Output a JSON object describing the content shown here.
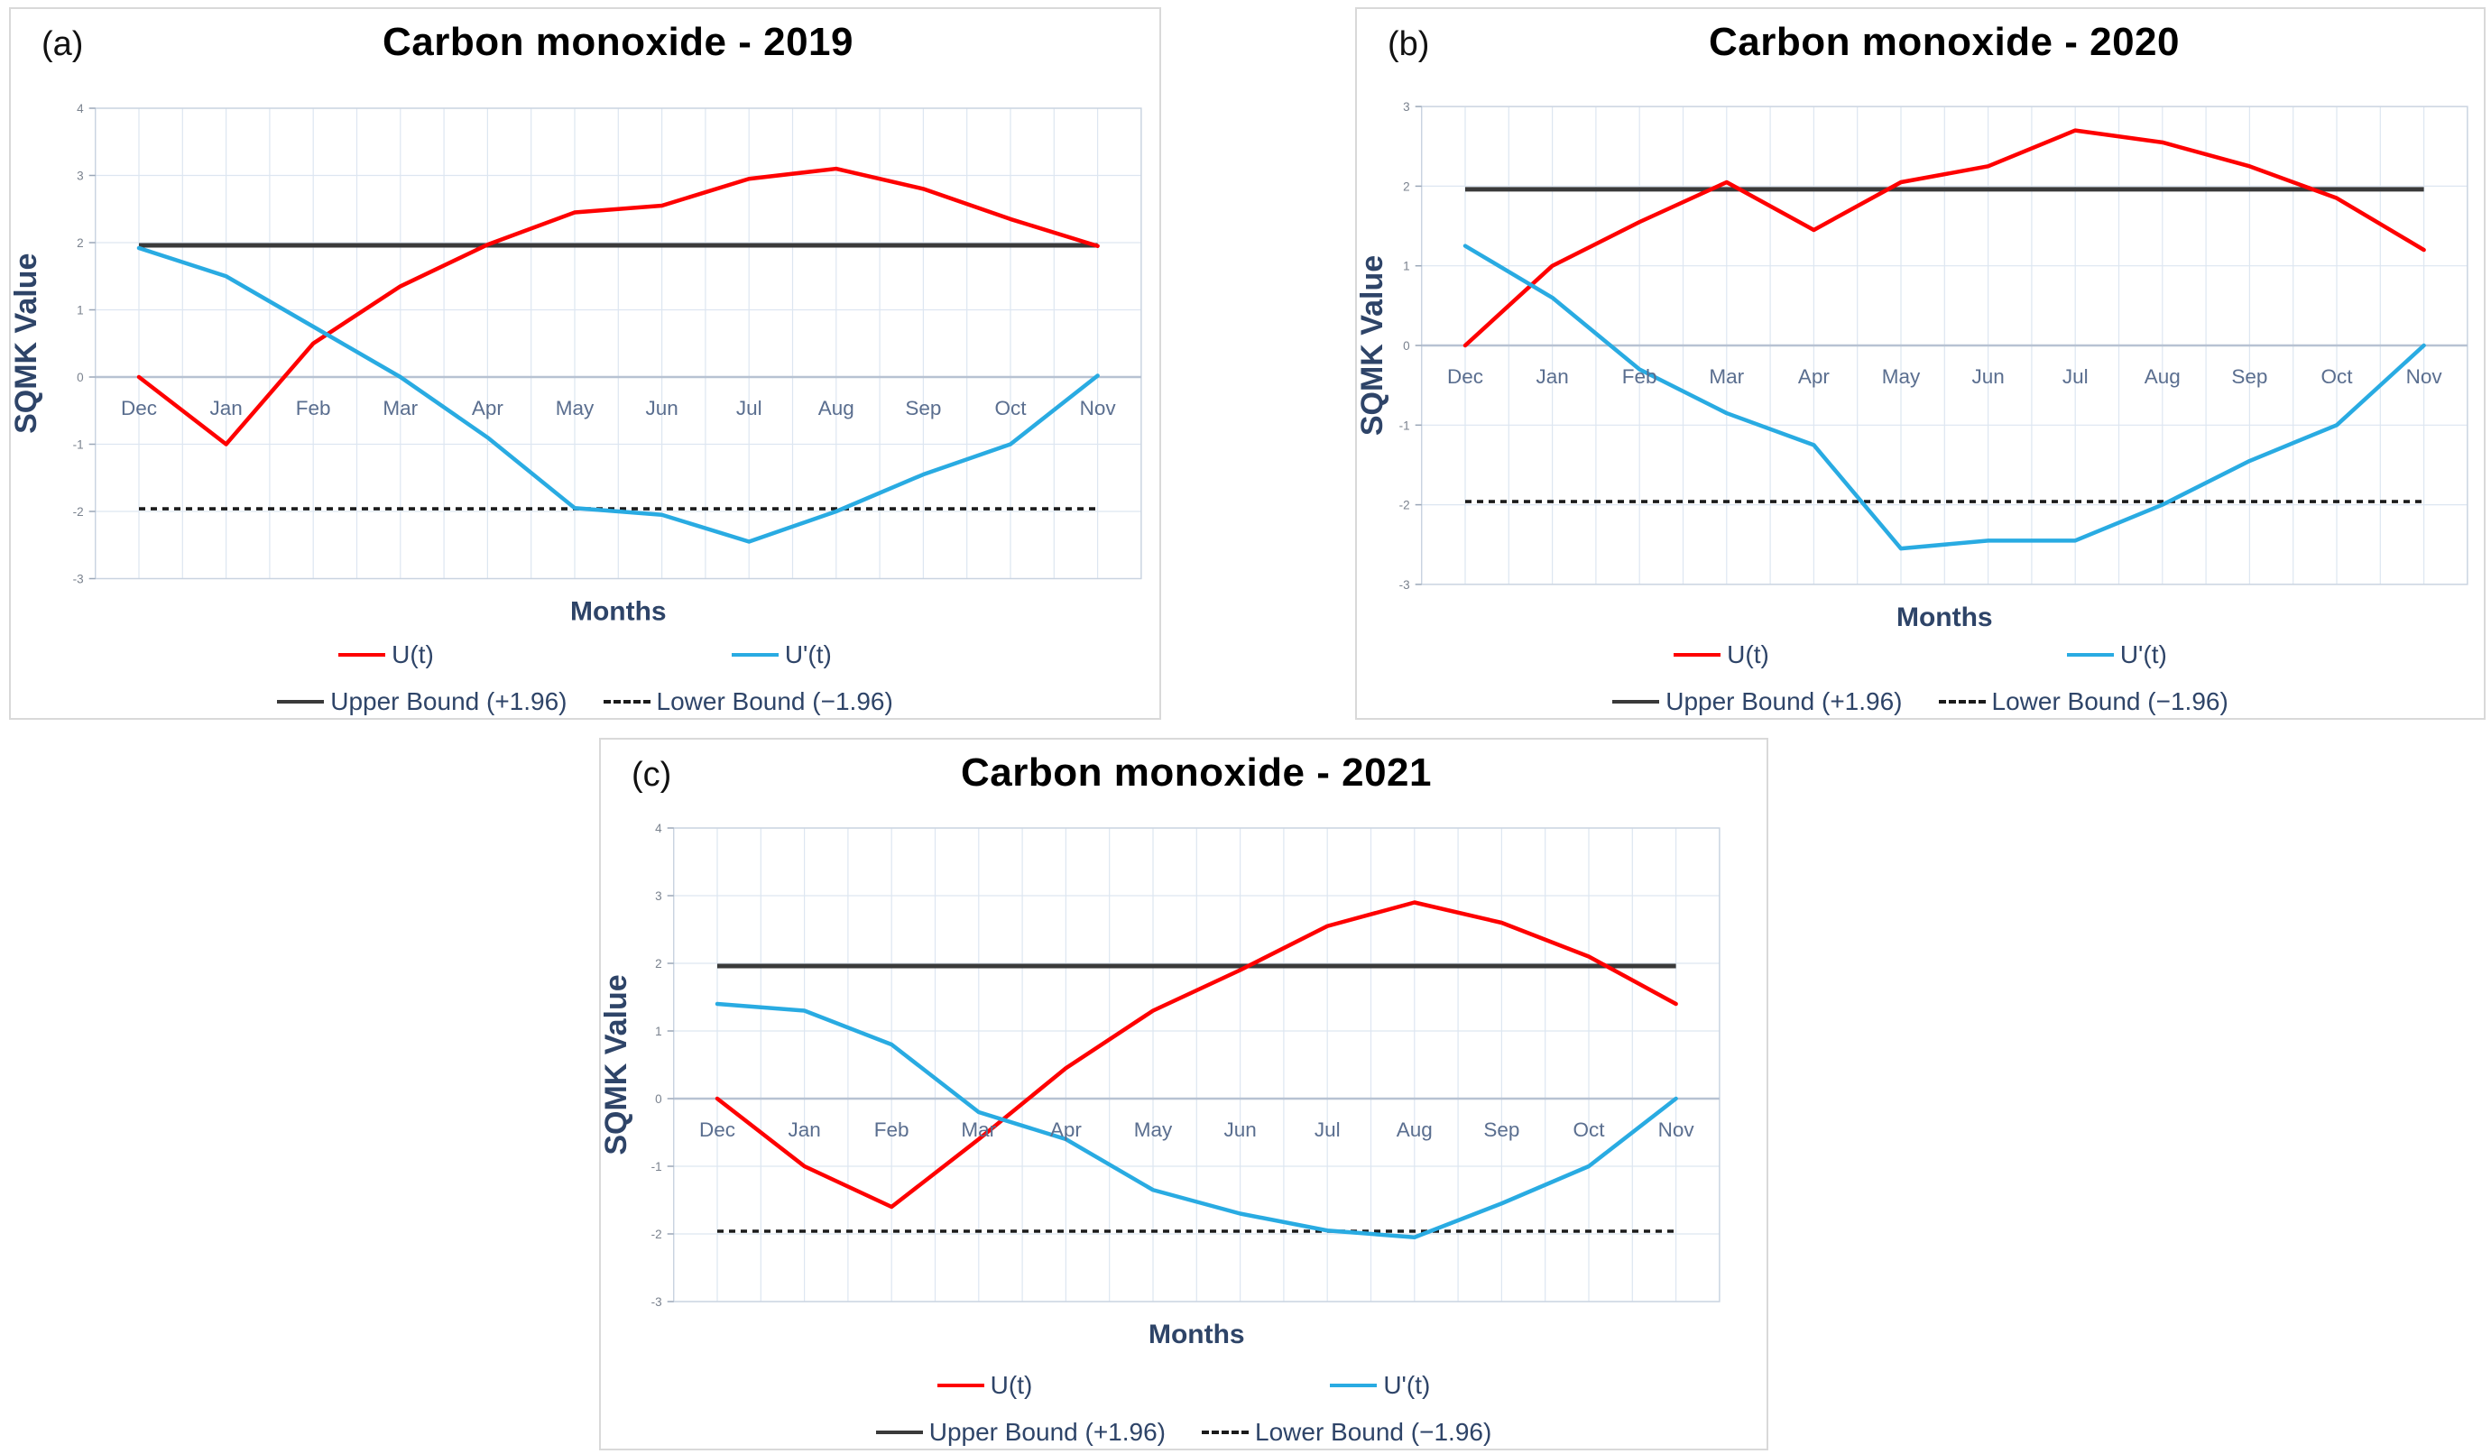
{
  "colors": {
    "u": "#fe0000",
    "u_prime": "#29abe2",
    "upper_bound": "#3a3a3a",
    "lower_bound": "#1b1b1b",
    "grid": "#dde6f1",
    "plot_border": "#c9d3e0",
    "zero_line": "#b7c2d2",
    "tick_mark": "#9aa7b8",
    "tick_label": "#7a828e",
    "month_label": "#5a6e8f",
    "axis_title": "#2e4468",
    "title": "#000000"
  },
  "legend": {
    "u": "U(t)",
    "u_prime": "U'(t)",
    "upper": "Upper Bound (+1.96)",
    "lower": "Lower Bound (−1.96)"
  },
  "axis_titles": {
    "x": "Months",
    "y": "SQMK Value"
  },
  "chart_data": [
    {
      "type": "line",
      "panel_label": "(a)",
      "title": "Carbon monoxide - 2019",
      "xlabel": "Months",
      "ylabel": "SQMK Value",
      "categories": [
        "Dec",
        "Jan",
        "Feb",
        "Mar",
        "Apr",
        "May",
        "Jun",
        "Jul",
        "Aug",
        "Sep",
        "Oct",
        "Nov"
      ],
      "ylim": [
        -3,
        4
      ],
      "grid": true,
      "legend_position": "bottom",
      "upper_bound": 1.96,
      "lower_bound": -1.96,
      "series": [
        {
          "name": "U(t)",
          "color_key": "u",
          "values": [
            0.0,
            -1.0,
            0.5,
            1.35,
            1.97,
            2.45,
            2.55,
            2.95,
            3.1,
            2.8,
            2.35,
            1.95
          ]
        },
        {
          "name": "U'(t)",
          "color_key": "u_prime",
          "values": [
            1.92,
            1.5,
            0.75,
            0.0,
            -0.9,
            -1.95,
            -2.05,
            -2.45,
            -2.0,
            -1.45,
            -1.0,
            0.02
          ]
        }
      ]
    },
    {
      "type": "line",
      "panel_label": "(b)",
      "title": "Carbon monoxide - 2020",
      "xlabel": "Months",
      "ylabel": "SQMK Value",
      "categories": [
        "Dec",
        "Jan",
        "Feb",
        "Mar",
        "Apr",
        "May",
        "Jun",
        "Jul",
        "Aug",
        "Sep",
        "Oct",
        "Nov"
      ],
      "ylim": [
        -3,
        3
      ],
      "grid": true,
      "legend_position": "bottom",
      "upper_bound": 1.96,
      "lower_bound": -1.96,
      "series": [
        {
          "name": "U(t)",
          "color_key": "u",
          "values": [
            0.0,
            1.0,
            1.55,
            2.05,
            1.45,
            2.05,
            2.25,
            2.7,
            2.55,
            2.25,
            1.85,
            1.2
          ]
        },
        {
          "name": "U'(t)",
          "color_key": "u_prime",
          "values": [
            1.25,
            0.6,
            -0.3,
            -0.85,
            -1.25,
            -2.55,
            -2.45,
            -2.45,
            -2.0,
            -1.45,
            -1.0,
            0.0
          ]
        }
      ]
    },
    {
      "type": "line",
      "panel_label": "(c)",
      "title": "Carbon monoxide - 2021",
      "xlabel": "Months",
      "ylabel": "SQMK Value",
      "categories": [
        "Dec",
        "Jan",
        "Feb",
        "Mar",
        "Apr",
        "May",
        "Jun",
        "Jul",
        "Aug",
        "Sep",
        "Oct",
        "Nov"
      ],
      "ylim": [
        -3,
        4
      ],
      "grid": true,
      "legend_position": "bottom",
      "upper_bound": 1.96,
      "lower_bound": -1.96,
      "series": [
        {
          "name": "U(t)",
          "color_key": "u",
          "values": [
            0.0,
            -1.0,
            -1.6,
            -0.6,
            0.45,
            1.3,
            1.9,
            2.55,
            2.9,
            2.6,
            2.1,
            1.4
          ]
        },
        {
          "name": "U'(t)",
          "color_key": "u_prime",
          "values": [
            1.4,
            1.3,
            0.8,
            -0.2,
            -0.6,
            -1.35,
            -1.7,
            -1.95,
            -2.05,
            -1.55,
            -1.0,
            0.0
          ]
        }
      ]
    }
  ]
}
